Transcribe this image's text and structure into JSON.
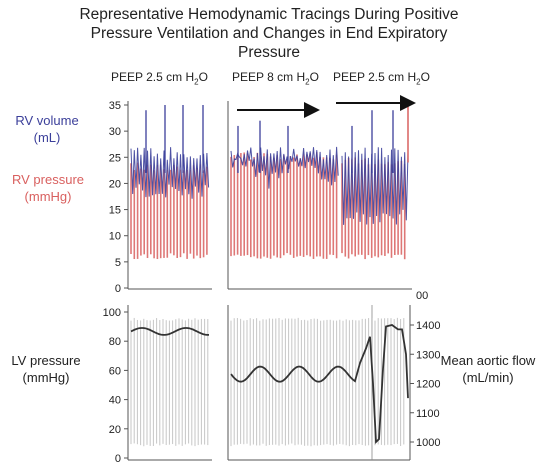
{
  "title_lines": [
    "Representative Hemodynamic Tracings During Positive",
    "Pressure Ventilation and Changes in End Expiratory",
    "Pressure"
  ],
  "phase_labels": [
    "PEEP 2.5 cm H",
    "PEEP 8 cm H",
    "PEEP 2.5 cm H"
  ],
  "phase_label_subscript": "2",
  "phase_label_suffix": "O",
  "top_labels": {
    "rv_volume": [
      "RV volume",
      "(mL)"
    ],
    "rv_pressure": [
      "RV pressure",
      "(mmHg)"
    ],
    "stray_tick": "00"
  },
  "bottom_labels": {
    "lv_pressure": [
      "LV pressure",
      "(mmHg)"
    ],
    "aortic_flow": [
      "Mean aortic flow",
      "(mL/min)"
    ]
  },
  "colors": {
    "rv_volume": "#3b3f9a",
    "rv_pressure": "#d9605f",
    "lv_pressure": "#b8b8b8",
    "aortic_flow": "#333333",
    "arrow": "#111111"
  },
  "chart_data": [
    {
      "type": "line",
      "panel": "top",
      "ylim": [
        0,
        35
      ],
      "yticks": [
        "0",
        "5",
        "10",
        "15",
        "20",
        "25",
        "30",
        "35"
      ],
      "phases": [
        "PEEP 2.5 cm H2O",
        "PEEP 8 cm H2O",
        "PEEP 2.5 cm H2O"
      ],
      "series": [
        {
          "name": "RV volume (mL)",
          "min_by_phase": [
            17,
            21,
            12
          ],
          "max_by_phase": [
            27,
            27,
            27
          ],
          "peak": 35
        },
        {
          "name": "RV pressure (mmHg)",
          "diastolic": 6,
          "systolic": [
            24,
            26,
            25
          ]
        }
      ]
    },
    {
      "type": "line",
      "panel": "bottom",
      "ylim": [
        0,
        100
      ],
      "yticks": [
        "0",
        "20",
        "40",
        "60",
        "80",
        "100"
      ],
      "y2lim": [
        950,
        1450
      ],
      "y2ticks": [
        "1000",
        "1100",
        "1200",
        "1300",
        "1400"
      ],
      "series": [
        {
          "name": "LV pressure (mmHg)",
          "diastolic": 8,
          "systolic": 96
        },
        {
          "name": "Mean aortic flow (mL/min)",
          "axis": "right",
          "phase1": [
            1370,
            1395
          ],
          "phase2": [
            1210,
            1260
          ],
          "phase3_min": 1000,
          "phase3_max": 1400
        }
      ]
    }
  ]
}
